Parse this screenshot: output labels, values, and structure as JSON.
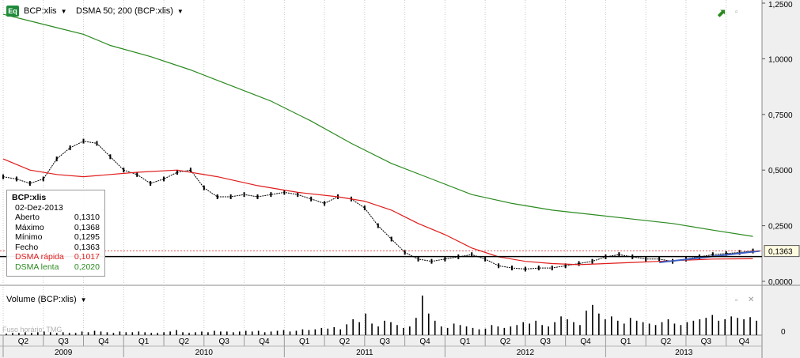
{
  "header": {
    "symbol_icon": "Eq",
    "symbol": "BCP:xlis",
    "study": "DSMA 50; 200 (BCP:xlis)"
  },
  "info_box": {
    "title": "BCP:xlis",
    "date": "02-Dez-2013",
    "rows": [
      {
        "label": "Aberto",
        "value": "0,1310"
      },
      {
        "label": "Máximo",
        "value": "0,1368"
      },
      {
        "label": "Mínimo",
        "value": "0,1295"
      },
      {
        "label": "Fecho",
        "value": "0,1363"
      },
      {
        "label": "DSMA rápida",
        "value": "0,1017"
      },
      {
        "label": "DSMA lenta",
        "value": "0,2020"
      }
    ]
  },
  "volume_header": "Volume (BCP:xlis)",
  "timezone_label": "Fuso horário: TMG",
  "last_price_label": "0,1363",
  "colors": {
    "price": "#000000",
    "fast_ma": "#e01b1b",
    "slow_ma": "#2a8a1f",
    "trend": "#3b5fc4",
    "grid": "#c9c9c9",
    "volume": "#000000",
    "axis_bg": "#efefef"
  },
  "chart_data": [
    {
      "type": "line",
      "title": "",
      "y_axis_ticks": [
        "1,2500",
        "1,0000",
        "0,7500",
        "0,5000",
        "0,2500",
        "0,0000"
      ],
      "ylim": [
        0,
        1.25
      ],
      "x_quarters": [
        "Q2",
        "Q3",
        "Q4",
        "Q1",
        "Q2",
        "Q3",
        "Q4",
        "Q1",
        "Q2",
        "Q3",
        "Q4",
        "Q1",
        "Q2",
        "Q3",
        "Q4",
        "Q1",
        "Q2",
        "Q3",
        "Q4"
      ],
      "x_years": [
        "2009",
        "2010",
        "2011",
        "2012",
        "2013"
      ],
      "x_range": [
        "2009-04",
        "2013-12"
      ],
      "series": [
        {
          "name": "BCP:xlis",
          "points": [
            [
              "2009-04",
              0.47
            ],
            [
              "2009-05",
              0.46
            ],
            [
              "2009-06",
              0.44
            ],
            [
              "2009-07",
              0.46
            ],
            [
              "2009-08",
              0.55
            ],
            [
              "2009-09",
              0.6
            ],
            [
              "2009-10",
              0.63
            ],
            [
              "2009-11",
              0.62
            ],
            [
              "2009-12",
              0.56
            ],
            [
              "2010-01",
              0.5
            ],
            [
              "2010-02",
              0.48
            ],
            [
              "2010-03",
              0.44
            ],
            [
              "2010-04",
              0.46
            ],
            [
              "2010-05",
              0.49
            ],
            [
              "2010-06",
              0.5
            ],
            [
              "2010-07",
              0.42
            ],
            [
              "2010-08",
              0.38
            ],
            [
              "2010-09",
              0.38
            ],
            [
              "2010-10",
              0.39
            ],
            [
              "2010-11",
              0.38
            ],
            [
              "2010-12",
              0.39
            ],
            [
              "2011-01",
              0.4
            ],
            [
              "2011-02",
              0.39
            ],
            [
              "2011-03",
              0.37
            ],
            [
              "2011-04",
              0.35
            ],
            [
              "2011-05",
              0.38
            ],
            [
              "2011-06",
              0.37
            ],
            [
              "2011-07",
              0.33
            ],
            [
              "2011-08",
              0.25
            ],
            [
              "2011-09",
              0.19
            ],
            [
              "2011-10",
              0.13
            ],
            [
              "2011-11",
              0.1
            ],
            [
              "2011-12",
              0.09
            ],
            [
              "2012-01",
              0.1
            ],
            [
              "2012-02",
              0.11
            ],
            [
              "2012-03",
              0.12
            ],
            [
              "2012-04",
              0.1
            ],
            [
              "2012-05",
              0.07
            ],
            [
              "2012-06",
              0.06
            ],
            [
              "2012-07",
              0.055
            ],
            [
              "2012-08",
              0.06
            ],
            [
              "2012-09",
              0.06
            ],
            [
              "2012-10",
              0.07
            ],
            [
              "2012-11",
              0.08
            ],
            [
              "2012-12",
              0.09
            ],
            [
              "2013-01",
              0.11
            ],
            [
              "2013-02",
              0.12
            ],
            [
              "2013-03",
              0.11
            ],
            [
              "2013-04",
              0.1
            ],
            [
              "2013-05",
              0.1
            ],
            [
              "2013-06",
              0.09
            ],
            [
              "2013-07",
              0.1
            ],
            [
              "2013-08",
              0.11
            ],
            [
              "2013-09",
              0.12
            ],
            [
              "2013-10",
              0.125
            ],
            [
              "2013-11",
              0.13
            ],
            [
              "2013-12",
              0.1363
            ]
          ]
        },
        {
          "name": "DSMA rápida",
          "points": [
            [
              "2009-04",
              0.55
            ],
            [
              "2009-06",
              0.5
            ],
            [
              "2009-08",
              0.48
            ],
            [
              "2009-10",
              0.47
            ],
            [
              "2009-12",
              0.48
            ],
            [
              "2010-02",
              0.49
            ],
            [
              "2010-05",
              0.5
            ],
            [
              "2010-08",
              0.47
            ],
            [
              "2010-11",
              0.43
            ],
            [
              "2011-02",
              0.4
            ],
            [
              "2011-05",
              0.38
            ],
            [
              "2011-07",
              0.36
            ],
            [
              "2011-09",
              0.32
            ],
            [
              "2011-11",
              0.26
            ],
            [
              "2012-01",
              0.21
            ],
            [
              "2012-03",
              0.15
            ],
            [
              "2012-05",
              0.11
            ],
            [
              "2012-07",
              0.09
            ],
            [
              "2012-09",
              0.08
            ],
            [
              "2012-11",
              0.075
            ],
            [
              "2013-01",
              0.08
            ],
            [
              "2013-03",
              0.085
            ],
            [
              "2013-05",
              0.09
            ],
            [
              "2013-07",
              0.095
            ],
            [
              "2013-09",
              0.1
            ],
            [
              "2013-12",
              0.1017
            ]
          ]
        },
        {
          "name": "DSMA lenta",
          "points": [
            [
              "2009-04",
              1.2
            ],
            [
              "2009-06",
              1.17
            ],
            [
              "2009-08",
              1.14
            ],
            [
              "2009-10",
              1.11
            ],
            [
              "2009-12",
              1.06
            ],
            [
              "2010-03",
              1.01
            ],
            [
              "2010-06",
              0.95
            ],
            [
              "2010-09",
              0.88
            ],
            [
              "2010-12",
              0.81
            ],
            [
              "2011-03",
              0.72
            ],
            [
              "2011-06",
              0.62
            ],
            [
              "2011-09",
              0.53
            ],
            [
              "2011-12",
              0.46
            ],
            [
              "2012-03",
              0.39
            ],
            [
              "2012-06",
              0.35
            ],
            [
              "2012-09",
              0.32
            ],
            [
              "2012-12",
              0.3
            ],
            [
              "2013-03",
              0.28
            ],
            [
              "2013-06",
              0.26
            ],
            [
              "2013-09",
              0.23
            ],
            [
              "2013-12",
              0.202
            ]
          ]
        }
      ],
      "reference_lines": [
        0.1363
      ]
    },
    {
      "type": "bar",
      "title": "Volume (BCP:xlis)",
      "series": [
        {
          "name": "Volume",
          "values": [
            2,
            3,
            3,
            4,
            3,
            4,
            5,
            4,
            3,
            4,
            3,
            3,
            5,
            4,
            6,
            5,
            4,
            3,
            5,
            4,
            4,
            5,
            4,
            3,
            3,
            4,
            5,
            7,
            4,
            3,
            4,
            5,
            4,
            6,
            5,
            5,
            4,
            5,
            6,
            5,
            6,
            4,
            5,
            6,
            7,
            5,
            6,
            8,
            7,
            8,
            10,
            9,
            11,
            8,
            15,
            22,
            18,
            30,
            16,
            12,
            20,
            18,
            14,
            10,
            12,
            24,
            55,
            30,
            20,
            12,
            10,
            16,
            14,
            12,
            10,
            8,
            9,
            14,
            12,
            10,
            12,
            14,
            18,
            16,
            20,
            14,
            12,
            18,
            26,
            22,
            18,
            14,
            34,
            42,
            30,
            22,
            26,
            20,
            16,
            24,
            20,
            18,
            16,
            14,
            18,
            22,
            16,
            14,
            18,
            20,
            22,
            24,
            28,
            20,
            22,
            26,
            24,
            22,
            25,
            20
          ]
        }
      ]
    }
  ]
}
